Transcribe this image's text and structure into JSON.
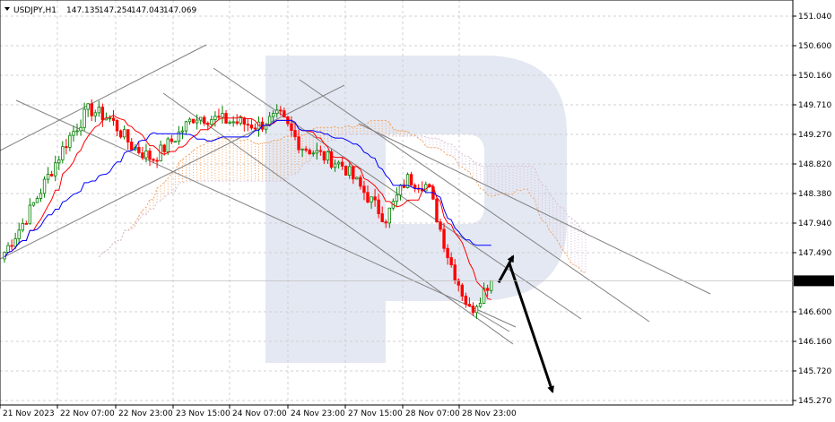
{
  "header": {
    "symbol": "USDJPY,H1",
    "open": "147.135",
    "high": "147.254",
    "low": "147.043",
    "close": "147.069"
  },
  "colors": {
    "bull": "#008000",
    "bear": "#ff0000",
    "tenkan": "#ff0000",
    "kijun": "#0000ff",
    "kumo_a": "#f4a460",
    "kumo_b": "#d8bfd8",
    "trendline": "#808080",
    "forecast_arrow": "#000000",
    "watermark": "#e4e8f2"
  },
  "chart_data": {
    "type": "candlestick",
    "title": "USDJPY,H1",
    "ylim": [
      145.27,
      151.04
    ],
    "y_ticks": [
      "151.040",
      "150.600",
      "150.160",
      "149.710",
      "149.270",
      "148.820",
      "148.380",
      "147.940",
      "147.490",
      "146.600",
      "146.160",
      "145.720",
      "145.270"
    ],
    "x_ticks": [
      "21 Nov 2023",
      "22 Nov 07:00",
      "22 Nov 23:00",
      "23 Nov 15:00",
      "24 Nov 07:00",
      "24 Nov 23:00",
      "27 Nov 15:00",
      "28 Nov 07:00",
      "28 Nov 23:00"
    ],
    "current_price": "147.069",
    "grid": true,
    "price_path": [
      147.5,
      148.0,
      148.6,
      149.2,
      149.65,
      149.5,
      149.1,
      148.9,
      149.2,
      149.55,
      149.5,
      149.45,
      149.4,
      149.55,
      149.1,
      148.95,
      148.8,
      148.4,
      148.0,
      148.6,
      148.5,
      147.4,
      146.6,
      147.1
    ],
    "indicators": [
      "Ichimoku Kinko Hyo"
    ],
    "forecast": {
      "points": [
        147.07,
        147.49,
        145.35
      ],
      "direction": "down"
    }
  }
}
